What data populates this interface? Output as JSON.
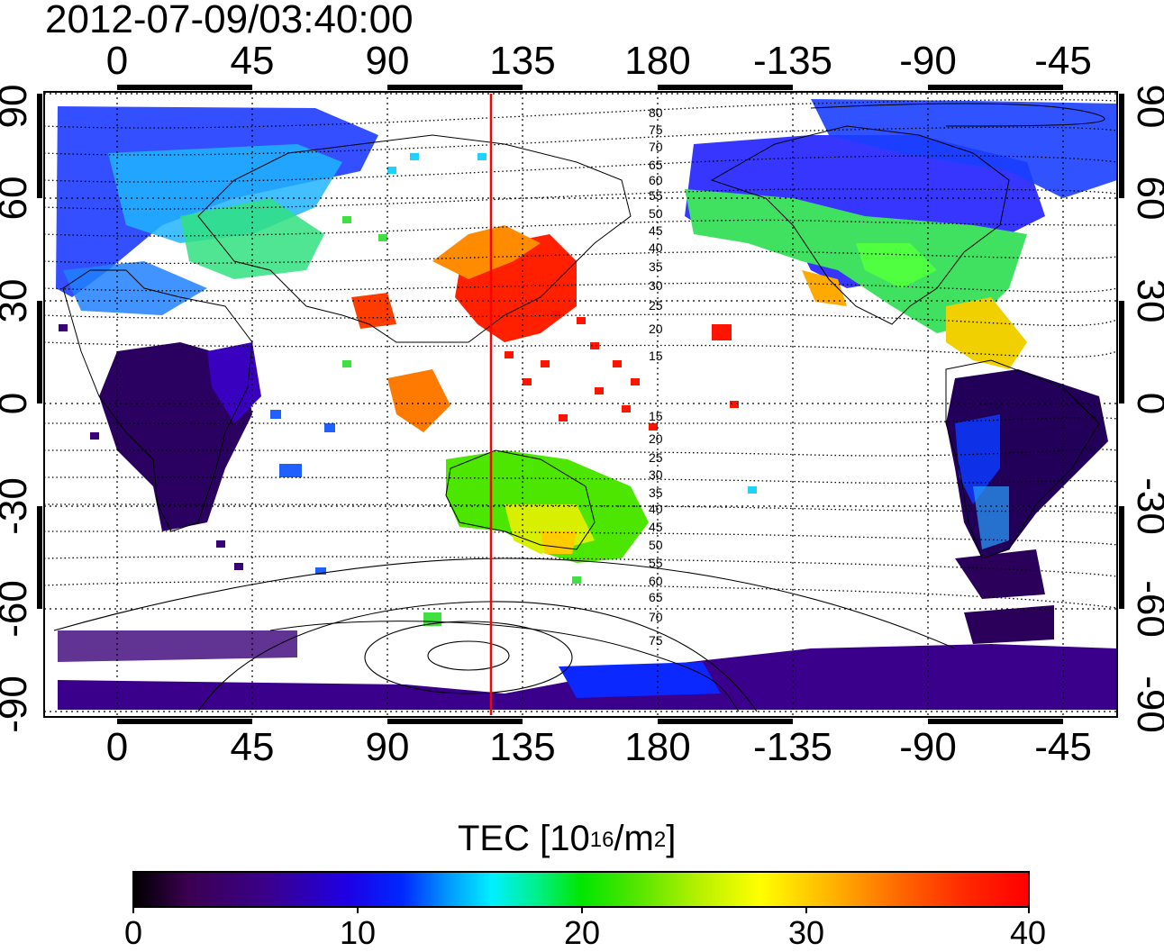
{
  "timestamp": "2012-07-09/03:40:00",
  "map": {
    "lon_ticks": [
      "0",
      "45",
      "90",
      "135",
      "180",
      "-135",
      "-90",
      "-45"
    ],
    "lat_ticks_left": [
      "90",
      "60",
      "30",
      "0",
      "-30",
      "-60",
      "-90"
    ],
    "lat_ticks_right": [
      "90",
      "60",
      "30",
      "0",
      "-30",
      "-60",
      "-90"
    ],
    "contour_labels_north": [
      "80",
      "75",
      "70",
      "65",
      "60",
      "55",
      "50",
      "45",
      "40",
      "35",
      "30",
      "25",
      "20",
      "15"
    ],
    "contour_labels_south": [
      "15",
      "20",
      "25",
      "30",
      "35",
      "40",
      "45",
      "50",
      "55",
      "60",
      "65",
      "70",
      "75"
    ],
    "marker_line_color": "#ff0000",
    "marker_longitude": 125
  },
  "colorbar": {
    "title_main": "TEC  [10",
    "title_sup1": "16",
    "title_mid": "/m",
    "title_sup2": "2",
    "title_end": "]",
    "ticks": [
      "0",
      "10",
      "20",
      "30",
      "40"
    ],
    "range": [
      0,
      40
    ],
    "colors": [
      "#000000",
      "#3a008c",
      "#0028ff",
      "#00f0ff",
      "#00e600",
      "#ffff00",
      "#ff6400",
      "#ff0000"
    ]
  }
}
